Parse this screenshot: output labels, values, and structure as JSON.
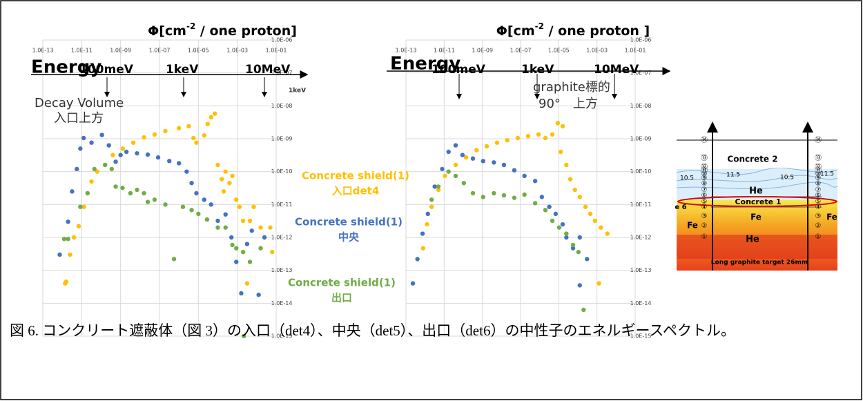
{
  "chart_data": [
    {
      "type": "scatter",
      "title": {
        "lead": "Φ[cm",
        "sup": "-2",
        "tail": " / one proton]"
      },
      "xlog": true,
      "ylog": true,
      "grid": true,
      "xlim": [
        1e-13,
        0.1
      ],
      "ylim": [
        1e-15,
        1e-06
      ],
      "xticks": [
        {
          "value": 1e-13,
          "label": "1.0E-13"
        },
        {
          "value": 1e-11,
          "label": "1.0E-11"
        },
        {
          "value": 1e-09,
          "label": "1.0E-09"
        },
        {
          "value": 1e-07,
          "label": "1.0E-07"
        },
        {
          "value": 1e-05,
          "label": "1.0E-05"
        },
        {
          "value": 0.001,
          "label": "1.0E-03"
        },
        {
          "value": 0.1,
          "label": "1.0E-01"
        }
      ],
      "yticks": [
        {
          "value": 1e-06,
          "label": "1.0E-06"
        },
        {
          "value": 1e-07,
          "label": "1.0E-07"
        },
        {
          "value": 1e-08,
          "label": "1.0E-08"
        },
        {
          "value": 1e-09,
          "label": "1.0E-09"
        },
        {
          "value": 1e-10,
          "label": "1.0E-10"
        },
        {
          "value": 1e-11,
          "label": "1.0E-11"
        },
        {
          "value": 1e-12,
          "label": "1.0E-12"
        },
        {
          "value": 1e-13,
          "label": "1.0E-13"
        },
        {
          "value": 1e-14,
          "label": "1.0E-14"
        },
        {
          "value": 1e-15,
          "label": "1.0E-15"
        }
      ],
      "energy_label": "Energy",
      "energy_marks": [
        "100meV",
        "1keV",
        "10MeV"
      ],
      "notes": [
        "1keV",
        "Decay Volume",
        "入口上方"
      ],
      "series": [
        {
          "color": "#FFC000",
          "x": [
            1.4e-12,
            1.6e-12,
            2.5e-12,
            4e-12,
            7e-12,
            1.3e-11,
            2e-11,
            3.2e-11,
            6.3e-11,
            1.6e-10,
            4e-10,
            1.3e-09,
            4.5e-09,
            1.6e-08,
            5.6e-08,
            2e-07,
            1e-06,
            3.2e-06,
            5.6e-06,
            7.9e-06,
            2e-05,
            3e-05,
            4.5e-05,
            7e-05,
            0.0001,
            0.00016,
            0.00025,
            0.0004,
            0.00056,
            0.0002,
            0.00089,
            0.0013,
            0.002,
            0.0032,
            0.0045,
            0.007,
            0.016,
            0.05,
            0.063
          ],
          "values": [
            4e-14,
            4.5e-14,
            3e-13,
            1e-12,
            2.2e-12,
            8.5e-12,
            2.2e-11,
            5e-11,
            1e-10,
            1.6e-10,
            3.2e-10,
            5e-10,
            7.6e-10,
            1.1e-09,
            1.35e-09,
            1.7e-09,
            2.1e-09,
            2.4e-09,
            1.05e-09,
            7.6e-10,
            1.26e-09,
            2.8e-09,
            4.5e-09,
            5.8e-09,
            1.6e-10,
            5.9e-11,
            1e-10,
            4.5e-11,
            7.4e-11,
            2.5e-11,
            1.4e-11,
            8.5e-12,
            3.2e-12,
            4e-14,
            3.2e-12,
            8.5e-12,
            2e-12,
            2e-12,
            3.6e-13
          ]
        },
        {
          "color": "#4472C4",
          "x": [
            7.4e-13,
            2e-12,
            3.2e-12,
            5.6e-12,
            8.5e-12,
            1.26e-11,
            3.2e-11,
            1.1e-10,
            2.5e-10,
            5.6e-10,
            1e-09,
            2e-09,
            7e-09,
            2.5e-08,
            8.5e-08,
            3.2e-07,
            1e-06,
            2.5e-06,
            4.5e-06,
            7.9e-06,
            2e-05,
            4.5e-05,
            0.0001,
            0.00025,
            0.0005,
            0.00089,
            0.0016,
            0.0032,
            0.0056,
            0.0126,
            0.025
          ],
          "values": [
            3e-13,
            3e-12,
            2.5e-11,
            1.2e-10,
            5e-10,
            1.05e-09,
            7.6e-10,
            1.3e-09,
            6.3e-10,
            2e-10,
            3.2e-10,
            4e-10,
            3.6e-10,
            3.3e-10,
            2.7e-10,
            2.1e-10,
            1.8e-10,
            1e-10,
            4.5e-11,
            2.2e-11,
            1.4e-11,
            1e-11,
            3.2e-12,
            5e-12,
            1e-12,
            1.8e-13,
            2e-14,
            6.3e-13,
            1.6e-12,
            1.8e-14,
            1e-12
          ]
        },
        {
          "color": "#70AD47",
          "x": [
            1.26e-12,
            2e-12,
            8.5e-12,
            2e-11,
            4.5e-11,
            1.6e-10,
            3.5e-10,
            5.6e-10,
            1.26e-09,
            3.2e-09,
            7e-09,
            1.6e-08,
            2.5e-08,
            5.6e-08,
            2e-07,
            5.6e-07,
            1.6e-06,
            4.5e-06,
            1e-05,
            2.8e-05,
            0.0001,
            0.00025,
            0.00056,
            0.00089,
            0.002,
            0.0045,
            0.016,
            0.0022
          ],
          "values": [
            9e-13,
            9e-13,
            8.5e-12,
            2.2e-11,
            1.2e-10,
            1.6e-10,
            1.2e-10,
            3.5e-11,
            3.2e-11,
            2.2e-11,
            2.8e-11,
            2.2e-11,
            1.2e-11,
            1.4e-11,
            1e-11,
            2.2e-13,
            8.5e-12,
            6.8e-12,
            5.2e-12,
            3.5e-12,
            2e-12,
            2e-12,
            5.9e-13,
            4.7e-13,
            3.6e-13,
            1.8e-13,
            4.7e-13,
            1e-15
          ]
        }
      ]
    },
    {
      "type": "scatter",
      "title": {
        "lead": "Φ[cm",
        "sup": "-2",
        "tail": " / one proton ]"
      },
      "xlog": true,
      "ylog": true,
      "grid": true,
      "xlim": [
        1e-13,
        0.1
      ],
      "ylim": [
        1e-15,
        1e-06
      ],
      "xticks": [
        {
          "value": 1e-13,
          "label": "1.0E-13"
        },
        {
          "value": 1e-11,
          "label": "1.0E-11"
        },
        {
          "value": 1e-09,
          "label": "1.0E-09"
        },
        {
          "value": 1e-07,
          "label": "1.0E-07"
        },
        {
          "value": 1e-05,
          "label": "1.0E-05"
        },
        {
          "value": 0.001,
          "label": "1.0E-03"
        },
        {
          "value": 0.1,
          "label": "1.0E-01"
        }
      ],
      "yticks": [
        {
          "value": 1e-06,
          "label": "1.0E-06"
        },
        {
          "value": 1e-07,
          "label": "1.0E-07"
        },
        {
          "value": 1e-08,
          "label": "1.0E-08"
        },
        {
          "value": 1e-09,
          "label": "1.0E-09"
        },
        {
          "value": 1e-10,
          "label": "1.0E-10"
        },
        {
          "value": 1e-11,
          "label": "1.0E-11"
        },
        {
          "value": 1e-12,
          "label": "1.0E-12"
        },
        {
          "value": 1e-13,
          "label": "1.0E-13"
        },
        {
          "value": 1e-14,
          "label": "1.0E-14"
        },
        {
          "value": 1e-15,
          "label": "1.0E-15"
        }
      ],
      "energy_label": "Energy",
      "energy_marks": [
        "100meV",
        "1keV",
        "10MeV"
      ],
      "notes": [
        "graphite標的",
        "90°　上方"
      ],
      "series": [
        {
          "color": "#FFC000",
          "x": [
            7.9e-13,
            1.26e-12,
            2.2e-12,
            5e-12,
            1.1e-11,
            4e-11,
            1.4e-10,
            5e-10,
            1.7e-09,
            5.9e-09,
            2e-08,
            7.2e-08,
            2.5e-07,
            8.7e-07,
            2e-06,
            4.6e-06,
            8.9e-06,
            1.6e-05,
            1.26e-05,
            2.5e-05,
            4e-05,
            7e-05,
            0.000126,
            0.00025,
            0.00045,
            0.00079,
            0.0016,
            0.0035,
            0.00126
          ],
          "values": [
            4.7e-13,
            2.5e-12,
            8.5e-12,
            2.8e-11,
            7.4e-11,
            1.6e-10,
            2.7e-10,
            4.5e-10,
            5.9e-10,
            7.6e-10,
            9e-10,
            1.05e-09,
            1.2e-09,
            1.35e-09,
            1.05e-09,
            1.35e-09,
            3e-09,
            2.4e-09,
            4e-10,
            1.6e-10,
            5.9e-11,
            2.8e-11,
            1.7e-11,
            8.5e-12,
            5.2e-12,
            3.2e-12,
            2e-12,
            1.3e-12,
            4e-14
          ]
        },
        {
          "color": "#4472C4",
          "x": [
            2.3e-13,
            4e-13,
            7.4e-13,
            1.4e-12,
            3.2e-12,
            7.9e-12,
            1.7e-11,
            4e-11,
            9.1e-11,
            3.2e-10,
            1.1e-09,
            4e-09,
            1.35e-08,
            4.7e-08,
            1.6e-07,
            5.8e-07,
            1.3e-06,
            3.2e-06,
            6.9e-06,
            1.6e-05,
            2.5e-05,
            5.6e-05,
            0.000126,
            0.0003,
            0.000126
          ],
          "values": [
            4e-14,
            2.2e-13,
            1.3e-12,
            5.2e-12,
            3.5e-11,
            1.2e-10,
            4e-10,
            6.3e-10,
            3.2e-10,
            2.5e-10,
            2.1e-10,
            1.9e-10,
            1.6e-10,
            1.1e-10,
            7.4e-11,
            5.2e-11,
            1.7e-11,
            8.5e-12,
            5.2e-12,
            2.5e-12,
            1e-12,
            4.7e-13,
            1e-12,
            2.2e-13,
            3.5e-14
          ]
        },
        {
          "color": "#70AD47",
          "x": [
            2.2e-12,
            5e-12,
            1.7e-11,
            4e-11,
            1.07e-10,
            3.2e-10,
            1.1e-09,
            4e-09,
            1.35e-08,
            4.7e-08,
            1.6e-07,
            5.8e-07,
            2e-06,
            4.6e-06,
            1.05e-05,
            2.5e-05,
            5.6e-05,
            0.000107,
            0.0002
          ],
          "values": [
            1.4e-11,
            3.5e-11,
            1e-10,
            7.4e-11,
            4.5e-11,
            2.2e-11,
            1.7e-11,
            2.2e-11,
            1.9e-11,
            1.6e-11,
            2e-11,
            1.1e-11,
            6.8e-12,
            3.2e-12,
            2e-12,
            1.3e-12,
            5.9e-13,
            3.6e-13,
            6.3e-15
          ]
        }
      ]
    }
  ],
  "legend": [
    {
      "lines": [
        "Concrete shield(1)",
        "入口det4"
      ],
      "color": "#FFC000"
    },
    {
      "lines": [
        "Concrete shield(1)",
        "中央"
      ],
      "color": "#4472C4"
    },
    {
      "lines": [
        "Concrete shield(1)",
        "出口"
      ],
      "color": "#70AD47"
    }
  ],
  "diagram": {
    "labels": [
      "Concrete 2",
      "He",
      "Concrete 1",
      "Fe",
      "He",
      "Fe",
      "Fe",
      "e 6",
      "Long graphite target 26mm",
      "10.5",
      "11.5",
      "10.5",
      "11.5"
    ],
    "left_markers": [
      "①",
      "②",
      "③",
      "④",
      "⑤",
      "⑥",
      "⑦",
      "⑧",
      "⑨",
      "⑩",
      "⑪",
      "⑫",
      "⑬",
      "⑭"
    ],
    "right_markers": [
      "①",
      "②",
      "③",
      "④",
      "⑤",
      "⑥",
      "⑦",
      "⑧",
      "⑨",
      "⑩",
      "⑪",
      "⑫",
      "⑬",
      "⑭"
    ]
  },
  "caption": "図 6. コンクリート遮蔽体（図 3）の入口（det4）、中央（det5）、出口（det6）の中性子のエネルギースペクトル。"
}
